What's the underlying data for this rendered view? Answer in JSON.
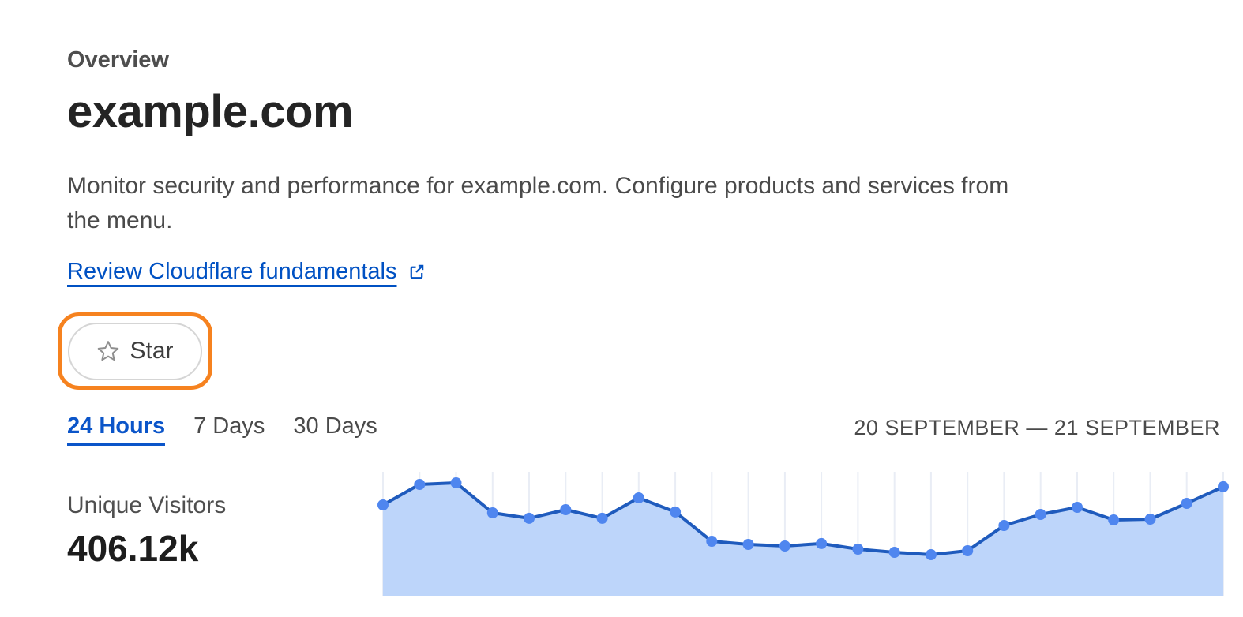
{
  "header": {
    "section_label": "Overview",
    "domain": "example.com",
    "description_line1": "Monitor security and performance for example.com. Configure products and services from",
    "description_line2": "the menu.",
    "link_label": "Review Cloudflare fundamentals",
    "star_button_label": "Star"
  },
  "time_filter": {
    "tabs": [
      {
        "label": "24 Hours",
        "active": true
      },
      {
        "label": "7 Days",
        "active": false
      },
      {
        "label": "30 Days",
        "active": false
      }
    ],
    "date_range": "20 SEPTEMBER — 21 SEPTEMBER"
  },
  "metric": {
    "label": "Unique Visitors",
    "value": "406.12k"
  },
  "colors": {
    "annotation_orange": "#f6821f",
    "link_blue": "#0051c3",
    "active_tab_blue": "#0b55c9"
  },
  "chart_data": {
    "type": "area",
    "title": "Unique Visitors",
    "total": "406.12k",
    "period": "24 Hours",
    "date_range": "20 September — 21 September",
    "x": "time, 24 evenly spaced points across the 24-hour window (no x tick labels shown)",
    "y_unit": "unique visitors (no y-axis labels shown; values given as percent of plot height)",
    "values": [
      71.9,
      88.1,
      89.4,
      65.6,
      61.3,
      68.1,
      61.3,
      77.5,
      66.3,
      43.1,
      40.6,
      39.4,
      41.3,
      36.9,
      34.4,
      32.5,
      35.6,
      55.6,
      64.4,
      70.0,
      60.0,
      60.6,
      73.1,
      86.3
    ],
    "grid": "faint vertical gridline at each data point, no horizontal gridlines",
    "legend": "none",
    "colors": {
      "line": "#1f5bbd",
      "dot": "#4f86ef",
      "fill": "#bdd5fa",
      "gridline": "#e9edf5"
    }
  }
}
